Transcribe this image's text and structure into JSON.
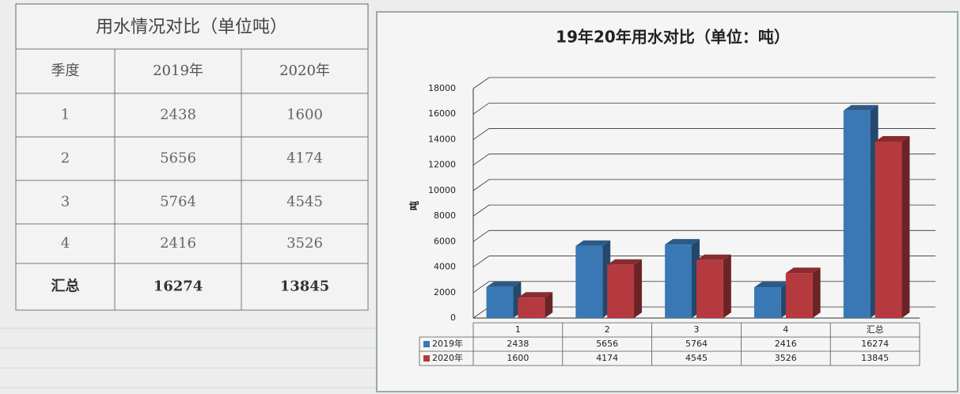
{
  "table": {
    "title": "用水情况对比（单位吨）",
    "header": [
      "季度",
      "2019年",
      "2020年"
    ],
    "rows": [
      [
        "1",
        "2438",
        "1600"
      ],
      [
        "2",
        "5656",
        "4174"
      ],
      [
        "3",
        "5764",
        "4545"
      ],
      [
        "4",
        "2416",
        "3526"
      ],
      [
        "汇总",
        "16274",
        "13845"
      ]
    ]
  },
  "chart_data": {
    "type": "bar",
    "title": "19年20年用水对比（单位：吨）",
    "y_label": "吨",
    "categories": [
      "1",
      "2",
      "3",
      "4",
      "汇总"
    ],
    "series": [
      {
        "name": "2019年",
        "color": "#3a78b5",
        "values": [
          2438,
          5656,
          5764,
          2416,
          16274
        ]
      },
      {
        "name": "2020年",
        "color": "#b53a3f",
        "values": [
          1600,
          4174,
          4545,
          3526,
          13845
        ]
      }
    ],
    "ylim": [
      0,
      18000
    ],
    "yticks": [
      0,
      2000,
      4000,
      6000,
      8000,
      10000,
      12000,
      14000,
      16000,
      18000
    ],
    "grid": true
  }
}
